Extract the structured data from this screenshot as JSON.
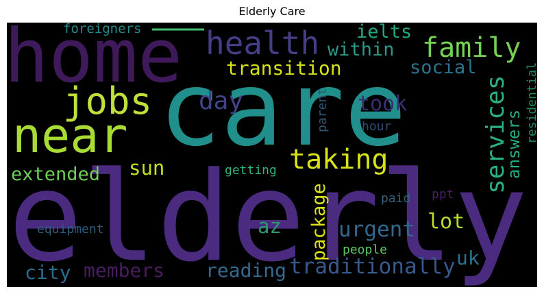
{
  "title": "Elderly Care",
  "words": [
    {
      "text": "elderly",
      "color": "#4b2b7f"
    },
    {
      "text": "care",
      "color": "#21908d"
    },
    {
      "text": "home",
      "color": "#3e1a5a"
    },
    {
      "text": "near",
      "color": "#a8db34"
    },
    {
      "text": "jobs",
      "color": "#bfe03a"
    },
    {
      "text": "health",
      "color": "#433e85"
    },
    {
      "text": "family",
      "color": "#75d054"
    },
    {
      "text": "services",
      "color": "#2bb07f"
    },
    {
      "text": "taking",
      "color": "#d8e219"
    },
    {
      "text": "transition",
      "color": "#d5e21a"
    },
    {
      "text": "within",
      "color": "#2a9a89"
    },
    {
      "text": "ielts",
      "color": "#24a884"
    },
    {
      "text": "social",
      "color": "#2c728e"
    },
    {
      "text": "day",
      "color": "#414487"
    },
    {
      "text": "took",
      "color": "#3b2f73"
    },
    {
      "text": "answers",
      "color": "#27ad81"
    },
    {
      "text": "residential",
      "color": "#1f8a5e"
    },
    {
      "text": "foreigners",
      "color": "#238a8d"
    },
    {
      "text": "parent",
      "color": "#32556f"
    },
    {
      "text": "hour",
      "color": "#2f4a6b"
    },
    {
      "text": "extended",
      "color": "#6ece58"
    },
    {
      "text": "sun",
      "color": "#c2df23"
    },
    {
      "text": "getting",
      "color": "#2fb47c"
    },
    {
      "text": "package",
      "color": "#dde318"
    },
    {
      "text": "urgent",
      "color": "#31688e"
    },
    {
      "text": "lot",
      "color": "#b5de2b"
    },
    {
      "text": "az",
      "color": "#2a9a6e"
    },
    {
      "text": "paid",
      "color": "#35607a"
    },
    {
      "text": "ppt",
      "color": "#4a1d62"
    },
    {
      "text": "equipment",
      "color": "#2d5b7a"
    },
    {
      "text": "people",
      "color": "#5ac864"
    },
    {
      "text": "city",
      "color": "#2c6d8e"
    },
    {
      "text": "members",
      "color": "#481c5e"
    },
    {
      "text": "reading",
      "color": "#356a8f"
    },
    {
      "text": "traditionally",
      "color": "#38598c"
    },
    {
      "text": "uk",
      "color": "#2c728e"
    }
  ]
}
